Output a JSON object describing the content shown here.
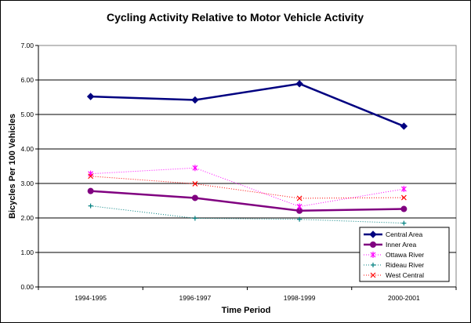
{
  "chart_data": {
    "type": "line",
    "title": "Cycling Activity Relative to Motor Vehicle Activity",
    "xlabel": "Time Period",
    "ylabel": "Bicycles Per 100 Vehicles",
    "categories": [
      "1994-1995",
      "1996-1997",
      "1998-1999",
      "2000-2001"
    ],
    "ylim": [
      0,
      7
    ],
    "yticks": [
      "0.00",
      "1.00",
      "2.00",
      "3.00",
      "4.00",
      "5.00",
      "6.00",
      "7.00"
    ],
    "grid": "horizontal",
    "legend_position": "bottom-right",
    "series": [
      {
        "name": "Central Area",
        "values": [
          5.52,
          5.42,
          5.89,
          4.66
        ],
        "color": "#000080",
        "style": "solid-thick",
        "marker": "diamond"
      },
      {
        "name": "Inner Area",
        "values": [
          2.78,
          2.58,
          2.21,
          2.26
        ],
        "color": "#800080",
        "style": "solid-thick",
        "marker": "circle"
      },
      {
        "name": "Ottawa River",
        "values": [
          3.28,
          3.45,
          2.33,
          2.84
        ],
        "color": "#ff00ff",
        "style": "dotted",
        "marker": "star"
      },
      {
        "name": "Rideau River",
        "values": [
          2.35,
          1.99,
          1.96,
          1.85
        ],
        "color": "#008080",
        "style": "dotted",
        "marker": "plus"
      },
      {
        "name": "West Central",
        "values": [
          3.21,
          2.99,
          2.57,
          2.59
        ],
        "color": "#ff0000",
        "style": "dotted",
        "marker": "x"
      }
    ]
  }
}
